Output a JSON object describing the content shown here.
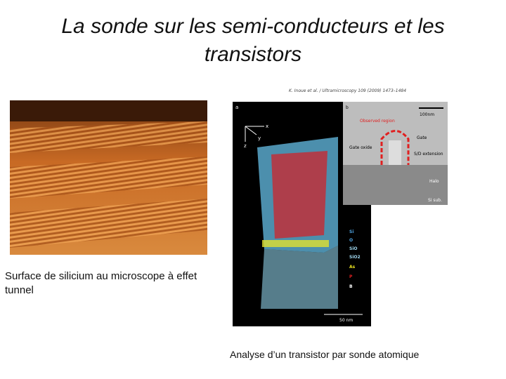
{
  "title": "La sonde sur les semi-conducteurs et les transistors",
  "left_figure": {
    "caption": "Surface de silicium au microscope à effet tunnel"
  },
  "right_figure": {
    "citation": "K. Inoue et al. / Ultramicroscopy 109 (2009) 1473–1484",
    "panel_a": {
      "label": "a",
      "axes": [
        "x",
        "y",
        "z"
      ],
      "legend": [
        "Si",
        "O",
        "SiO",
        "SiO2",
        "As",
        "P",
        "B"
      ],
      "scale": "50 nm"
    },
    "panel_b": {
      "label": "b",
      "scale": "100nm",
      "labels": [
        "Observed region",
        "Gate",
        "Gate oxide",
        "S/D extension",
        "Halo",
        "Si sub."
      ]
    },
    "caption": "Analyse d’un  transistor par sonde atomique"
  }
}
